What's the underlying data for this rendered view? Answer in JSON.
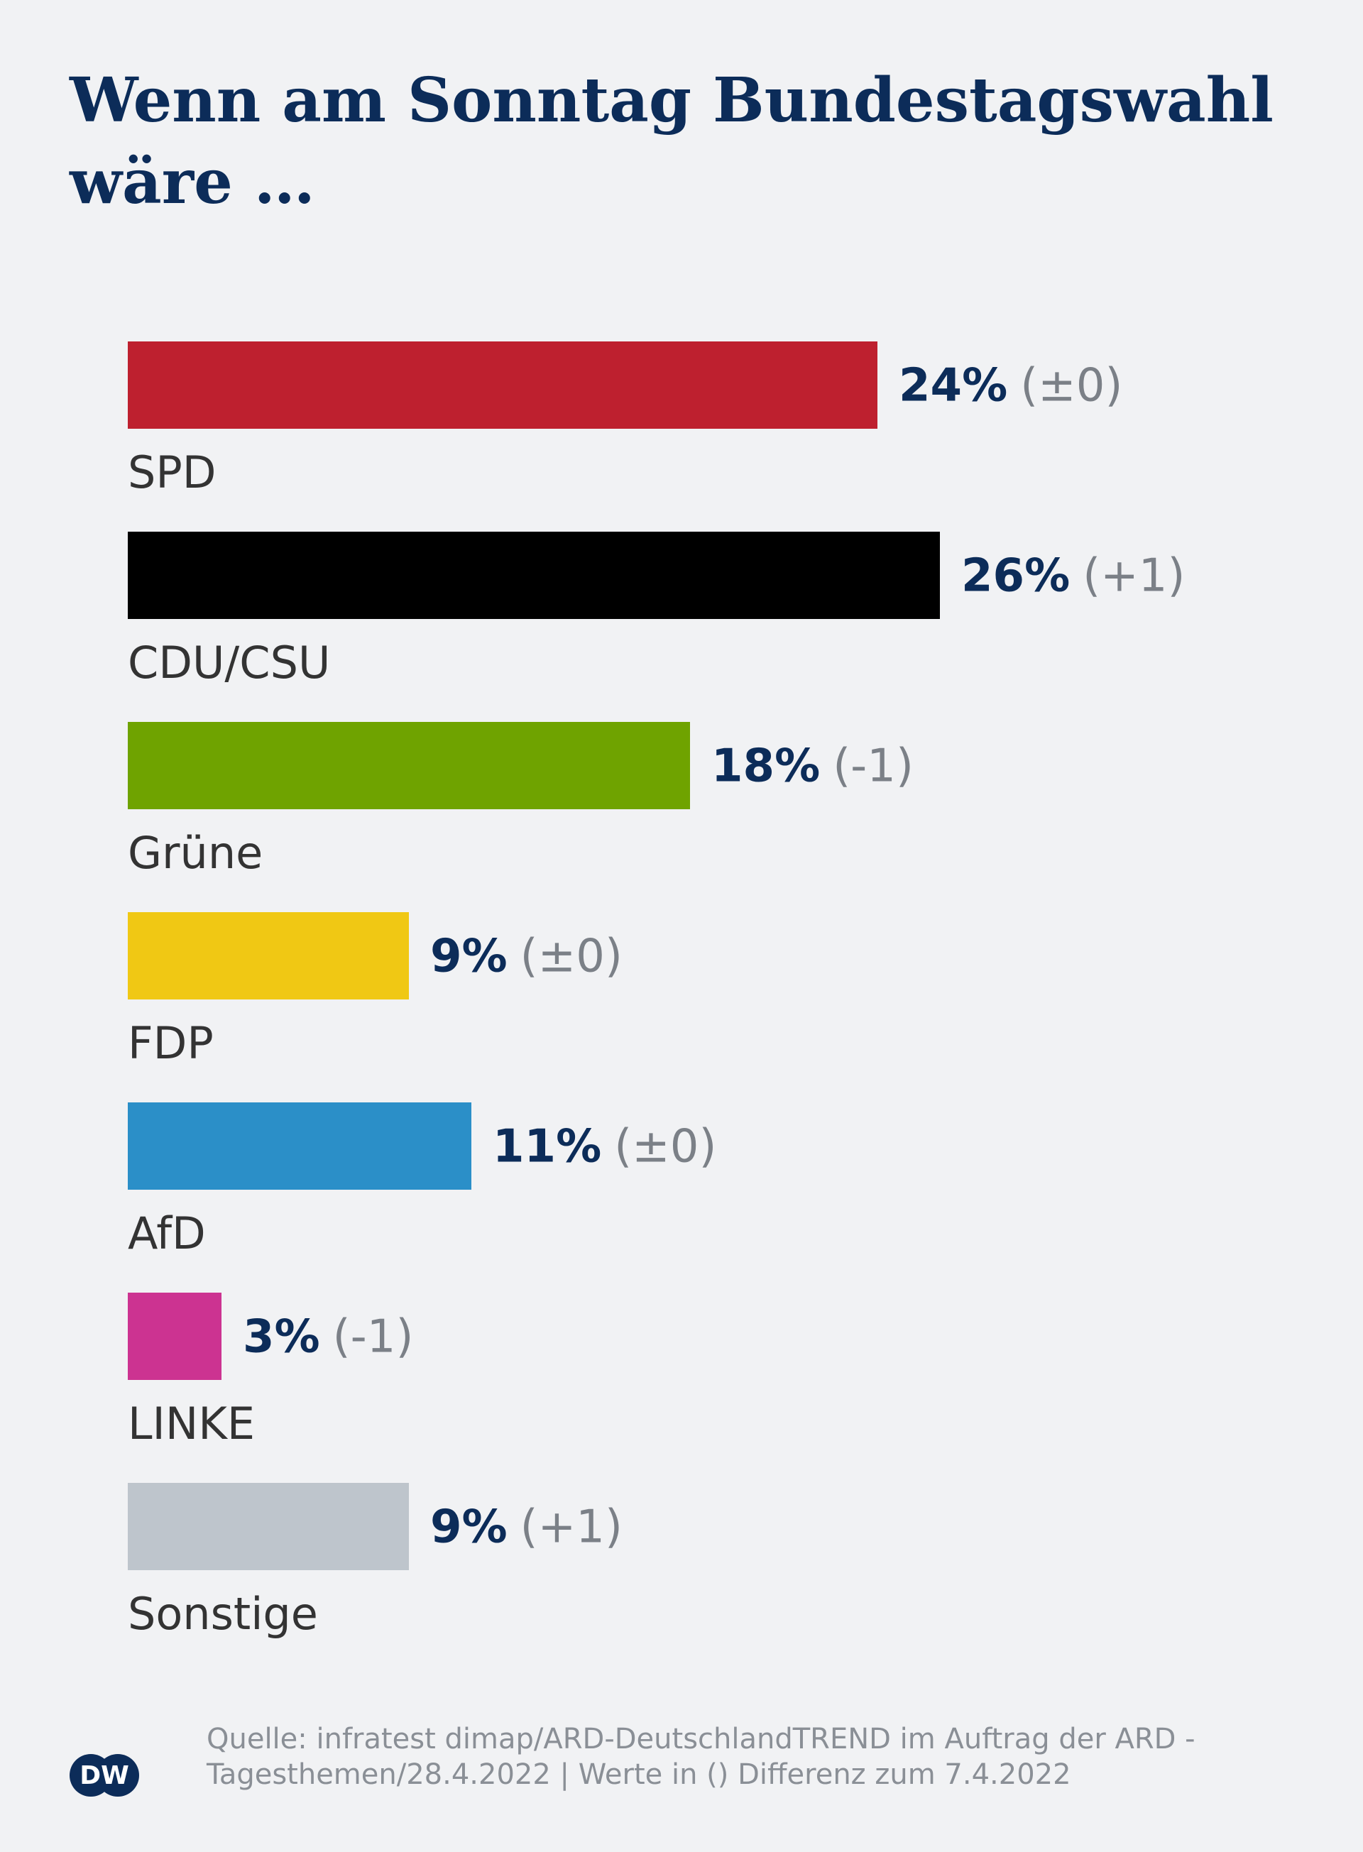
{
  "chart_data": {
    "type": "bar",
    "orientation": "horizontal",
    "title": [
      "Wenn am Sonntag Bundestagswahl",
      "wäre …"
    ],
    "categories": [
      "SPD",
      "CDU/CSU",
      "Grüne",
      "FDP",
      "AfD",
      "LINKE",
      "Sonstige"
    ],
    "values": [
      24,
      26,
      18,
      9,
      11,
      3,
      9
    ],
    "value_labels": [
      "24%",
      "26%",
      "18%",
      "9%",
      "11%",
      "3%",
      "9%"
    ],
    "changes": [
      "(±0)",
      "(+1)",
      "(-1)",
      "(±0)",
      "(±0)",
      "(-1)",
      "(+1)"
    ],
    "colors": [
      "#be202f",
      "#000000",
      "#6fa300",
      "#f0c814",
      "#2b8fc8",
      "#cc3391",
      "#bec5cc"
    ],
    "source": [
      "Quelle: infratest dimap/ARD-DeutschlandTREND im Auftrag der ARD -",
      "Tagesthemen/28.4.2022 | Werte in () Differenz zum 7.4.2022"
    ],
    "logo": "DW"
  }
}
